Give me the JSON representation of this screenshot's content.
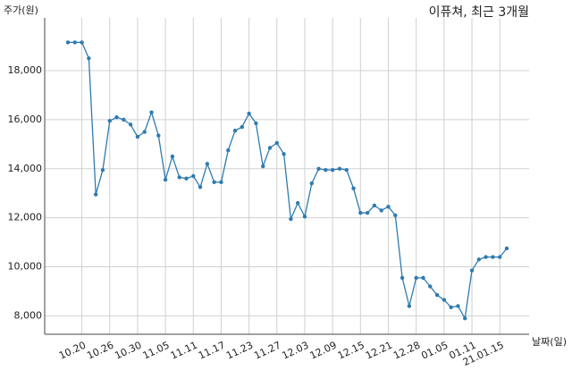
{
  "chart_data": {
    "type": "line",
    "title": "이퓨쳐, 최근 3개월",
    "y_label": "주가(원)",
    "x_label": "날짜(일)",
    "categories": [
      null,
      null,
      "10.20",
      null,
      null,
      null,
      "10.26",
      null,
      null,
      null,
      "10.30",
      null,
      null,
      null,
      "11.05",
      null,
      null,
      null,
      "11.11",
      null,
      null,
      null,
      "11.17",
      null,
      null,
      null,
      "11.23",
      null,
      null,
      null,
      "11.27",
      null,
      null,
      null,
      "12.03",
      null,
      null,
      null,
      "12.09",
      null,
      null,
      null,
      "12.15",
      null,
      null,
      null,
      "12.21",
      null,
      null,
      null,
      "12.28",
      null,
      null,
      null,
      "01.05",
      null,
      null,
      null,
      "01.11",
      null,
      null,
      null,
      "21.01.15",
      null
    ],
    "series": [
      {
        "name": "주가",
        "color": "#2e7bb0",
        "values": [
          19150,
          19150,
          19150,
          18500,
          12950,
          13950,
          15950,
          16100,
          16000,
          15800,
          15300,
          15500,
          16300,
          15350,
          13550,
          14500,
          13650,
          13600,
          13700,
          13250,
          14200,
          13450,
          13450,
          14750,
          15550,
          15700,
          16250,
          15850,
          14100,
          14850,
          15050,
          14600,
          11950,
          12600,
          12050,
          13400,
          14000,
          13950,
          13950,
          14000,
          13950,
          13200,
          12200,
          12200,
          12500,
          12300,
          12450,
          12100,
          9550,
          8400,
          9550,
          9550,
          9200,
          8850,
          8650,
          8350,
          8400,
          7900,
          9850,
          10300,
          10400,
          10400,
          10400,
          10750
        ]
      }
    ],
    "ylim": [
      7250,
      20150
    ],
    "yticks": [
      {
        "value": 8000,
        "label": "8,000"
      },
      {
        "value": 10000,
        "label": "10,000"
      },
      {
        "value": 12000,
        "label": "12,000"
      },
      {
        "value": 14000,
        "label": "14,000"
      },
      {
        "value": 16000,
        "label": "16,000"
      },
      {
        "value": 18000,
        "label": "18,000"
      }
    ],
    "grid": true
  }
}
